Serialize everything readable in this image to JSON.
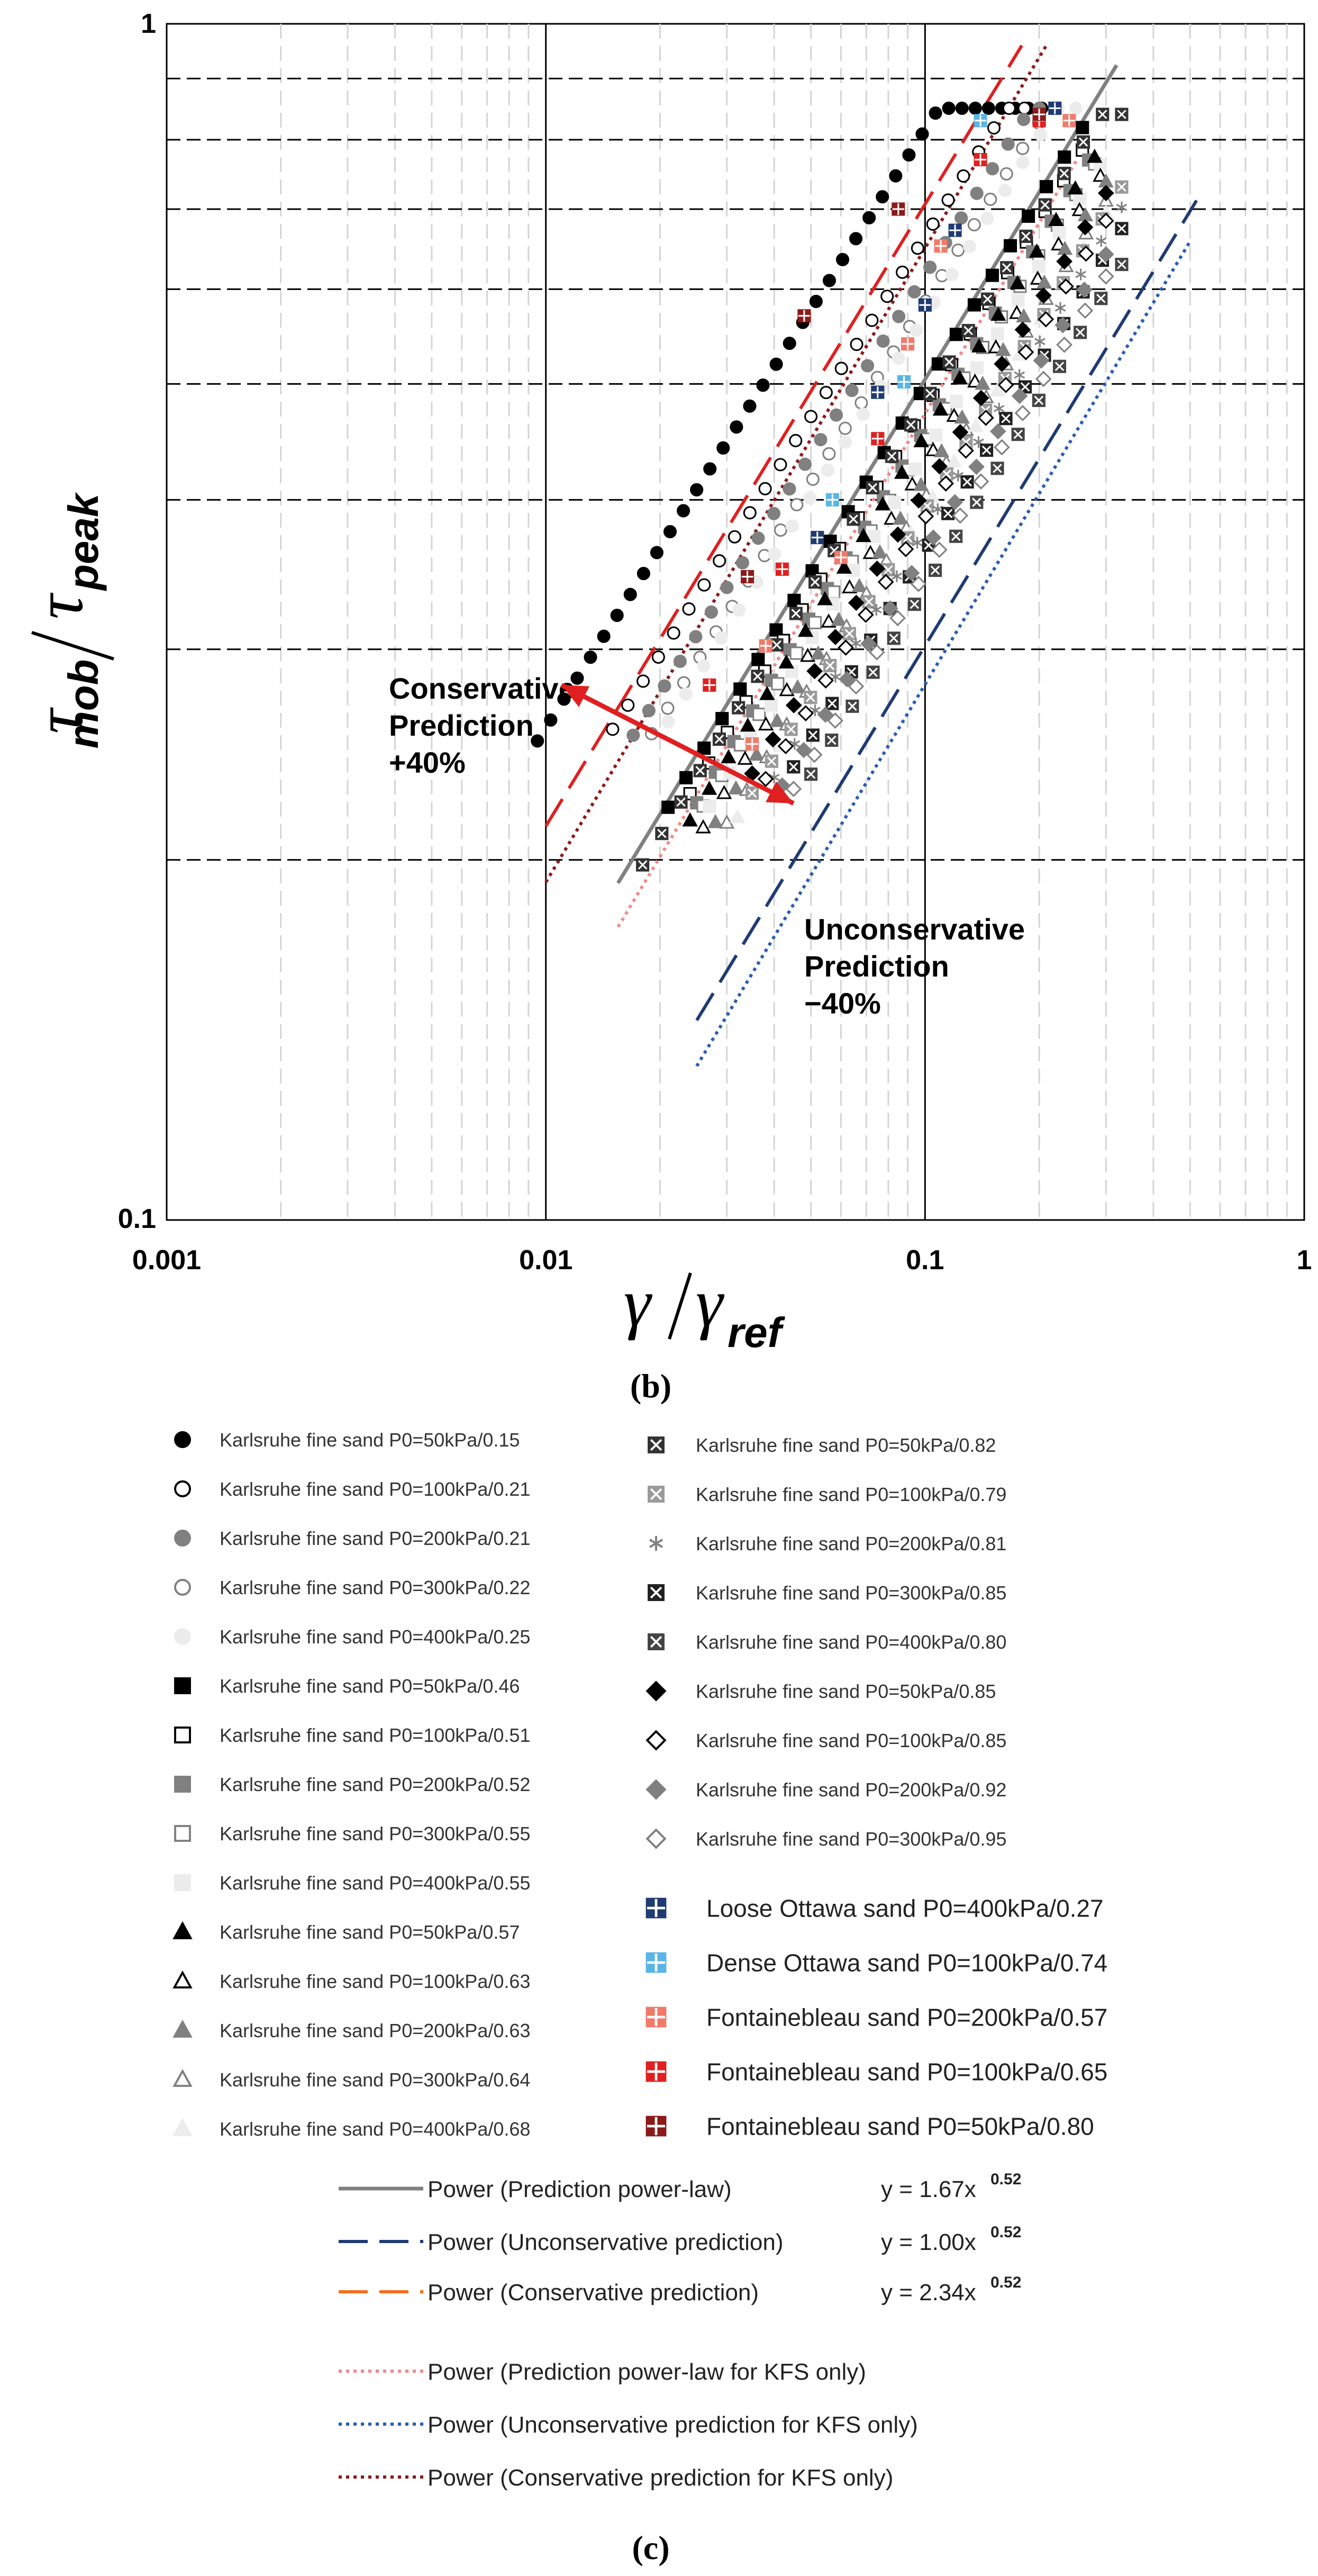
{
  "chart_data": {
    "type": "scatter",
    "x_scale": "log",
    "y_scale": "log",
    "xlim": [
      0.001,
      1
    ],
    "ylim": [
      0.1,
      1
    ],
    "x_ticks": [
      {
        "value": 0.001,
        "label": "0.001"
      },
      {
        "value": 0.01,
        "label": "0.01"
      },
      {
        "value": 0.1,
        "label": "0.1"
      },
      {
        "value": 1,
        "label": "1"
      }
    ],
    "y_ticks": [
      {
        "value": 0.1,
        "label": "0.1"
      },
      {
        "value": 1,
        "label": "1"
      }
    ],
    "y_dashed_gridlines": [
      0.2,
      0.3,
      0.4,
      0.5,
      0.6,
      0.7,
      0.8,
      0.9
    ],
    "xlabel": {
      "main": "γ",
      "sub": "ref"
    },
    "ylabel": {
      "main": "τ",
      "sub_num": "mob",
      "sub_den": "peak"
    },
    "panel_labels": {
      "b": "(b)",
      "c": "(c)"
    },
    "annotations": {
      "conservative": [
        "Conservative",
        "Prediction",
        "+40%"
      ],
      "unconservative": [
        "Unconservative",
        "Prediction",
        "−40%"
      ]
    },
    "arrow": {
      "from": [
        0.011,
        0.28
      ],
      "to": [
        0.045,
        0.223
      ]
    },
    "colors": {
      "black": "#000000",
      "gray": "#808080",
      "light_gray": "#d8d8d8",
      "lighter_gray": "#ececec",
      "navy": "#1f3b73",
      "cyan": "#5ab4e5",
      "salmon": "#f07a6a",
      "red": "#e02020",
      "dark_red": "#8c1a1a",
      "arrow_red": "#e02020"
    },
    "fit_lines": [
      {
        "name": "Power (Prediction power-law)",
        "equation": "y = 1.67x",
        "exponent_label": "0.52",
        "a": 1.67,
        "b": 0.52,
        "x_range": [
          0.0155,
          0.32
        ],
        "color": "#808080",
        "style": "solid"
      },
      {
        "name": "Power (Unconservative prediction)",
        "equation": "y = 1.00x",
        "exponent_label": "0.52",
        "a": 1.0,
        "b": 0.52,
        "x_range": [
          0.025,
          0.52
        ],
        "color": "#1f3b73",
        "style": "dashed"
      },
      {
        "name": "Power (Conservative prediction)",
        "equation": "y = 2.34x",
        "exponent_label": "0.52",
        "a": 2.34,
        "b": 0.52,
        "x_range": [
          0.01,
          0.18
        ],
        "color": "#e02020",
        "style": "dashed"
      },
      {
        "name": "Power (Prediction power-law for KFS only)",
        "equation": "",
        "exponent_label": "",
        "a": 1.6,
        "b": 0.53,
        "x_range": [
          0.0155,
          0.25
        ],
        "color": "#f08a8a",
        "style": "dotted"
      },
      {
        "name": "Power (Unconservative prediction for KFS only)",
        "equation": "",
        "exponent_label": "",
        "a": 0.95,
        "b": 0.53,
        "x_range": [
          0.025,
          0.5
        ],
        "color": "#2a5db0",
        "style": "dotted"
      },
      {
        "name": "Power (Conservative prediction for KFS only)",
        "equation": "",
        "exponent_label": "",
        "a": 2.2,
        "b": 0.53,
        "x_range": [
          0.01,
          0.21
        ],
        "color": "#8c1a1a",
        "style": "dotted"
      }
    ],
    "legend_lines_extra_color": "#f0701e",
    "series": [
      {
        "name": "Karlsruhe fine sand P0=50kPa/0.15",
        "marker": "circle",
        "fill": "#000000",
        "stroke": "#000000",
        "col": 0,
        "x_start": 0.0095,
        "x_end": 0.22,
        "k": 2.58,
        "b": 0.5,
        "n": 40,
        "y_cap": 0.85
      },
      {
        "name": "Karlsruhe fine sand P0=100kPa/0.21",
        "marker": "circle",
        "fill": "#ffffff",
        "stroke": "#000000",
        "col": 0,
        "x_start": 0.015,
        "x_end": 0.22,
        "k": 2.1,
        "b": 0.5,
        "n": 30,
        "y_cap": 0.85
      },
      {
        "name": "Karlsruhe fine sand P0=200kPa/0.21",
        "marker": "circle",
        "fill": "#808080",
        "stroke": "#808080",
        "col": 0,
        "x_start": 0.017,
        "x_end": 0.22,
        "k": 1.95,
        "b": 0.5,
        "n": 28,
        "y_cap": 0.85
      },
      {
        "name": "Karlsruhe fine sand P0=300kPa/0.22",
        "marker": "circle",
        "fill": "#ffffff",
        "stroke": "#808080",
        "col": 0,
        "x_start": 0.019,
        "x_end": 0.22,
        "k": 1.85,
        "b": 0.5,
        "n": 26,
        "y_cap": 0.85
      },
      {
        "name": "Karlsruhe fine sand P0=400kPa/0.25",
        "marker": "circle",
        "fill": "#ececec",
        "stroke": "#ececec",
        "col": 0,
        "x_start": 0.021,
        "x_end": 0.25,
        "k": 1.8,
        "b": 0.5,
        "n": 24,
        "y_cap": 0.85
      },
      {
        "name": "Karlsruhe fine sand P0=50kPa/0.46",
        "marker": "square",
        "fill": "#000000",
        "stroke": "#000000",
        "col": 0,
        "x_start": 0.021,
        "x_end": 0.26,
        "k": 1.65,
        "b": 0.52,
        "n": 24,
        "y_cap": 0.84
      },
      {
        "name": "Karlsruhe fine sand P0=100kPa/0.51",
        "marker": "square",
        "fill": "#ffffff",
        "stroke": "#000000",
        "col": 0,
        "x_start": 0.024,
        "x_end": 0.26,
        "k": 1.58,
        "b": 0.52,
        "n": 22,
        "y_cap": 0.84
      },
      {
        "name": "Karlsruhe fine sand P0=200kPa/0.52",
        "marker": "square",
        "fill": "#808080",
        "stroke": "#808080",
        "col": 0,
        "x_start": 0.025,
        "x_end": 0.27,
        "k": 1.52,
        "b": 0.52,
        "n": 22,
        "y_cap": 0.84
      },
      {
        "name": "Karlsruhe fine sand P0=300kPa/0.55",
        "marker": "square",
        "fill": "#ffffff",
        "stroke": "#808080",
        "col": 0,
        "x_start": 0.026,
        "x_end": 0.28,
        "k": 1.48,
        "b": 0.52,
        "n": 22,
        "y_cap": 0.84
      },
      {
        "name": "Karlsruhe fine sand P0=400kPa/0.55",
        "marker": "square",
        "fill": "#ececec",
        "stroke": "#ececec",
        "col": 0,
        "x_start": 0.027,
        "x_end": 0.29,
        "k": 1.45,
        "b": 0.52,
        "n": 20,
        "y_cap": 0.84
      },
      {
        "name": "Karlsruhe fine sand P0=50kPa/0.57",
        "marker": "triangle",
        "fill": "#000000",
        "stroke": "#000000",
        "col": 0,
        "x_start": 0.024,
        "x_end": 0.28,
        "k": 1.5,
        "b": 0.52,
        "n": 22,
        "y_cap": 0.84
      },
      {
        "name": "Karlsruhe fine sand P0=100kPa/0.63",
        "marker": "triangle",
        "fill": "#ffffff",
        "stroke": "#000000",
        "col": 0,
        "x_start": 0.026,
        "x_end": 0.29,
        "k": 1.42,
        "b": 0.52,
        "n": 20,
        "y_cap": 0.84
      },
      {
        "name": "Karlsruhe fine sand P0=200kPa/0.63",
        "marker": "triangle",
        "fill": "#808080",
        "stroke": "#808080",
        "col": 0,
        "x_start": 0.028,
        "x_end": 0.3,
        "k": 1.38,
        "b": 0.52,
        "n": 20,
        "y_cap": 0.84
      },
      {
        "name": "Karlsruhe fine sand P0=300kPa/0.64",
        "marker": "triangle",
        "fill": "#ffffff",
        "stroke": "#808080",
        "col": 0,
        "x_start": 0.03,
        "x_end": 0.3,
        "k": 1.33,
        "b": 0.52,
        "n": 20,
        "y_cap": 0.84
      },
      {
        "name": "Karlsruhe fine sand P0=400kPa/0.68",
        "marker": "triangle",
        "fill": "#ececec",
        "stroke": "#ececec",
        "col": 0,
        "x_start": 0.032,
        "x_end": 0.3,
        "k": 1.3,
        "b": 0.52,
        "n": 18,
        "y_cap": 0.84
      },
      {
        "name": "Karlsruhe fine sand P0=50kPa/0.82",
        "marker": "xsquare",
        "fill": "#333333",
        "stroke": "#333333",
        "col": 1,
        "x_start": 0.018,
        "x_end": 0.33,
        "k": 1.6,
        "b": 0.52,
        "n": 26,
        "y_cap": 0.84
      },
      {
        "name": "Karlsruhe fine sand P0=100kPa/0.79",
        "marker": "xsquare",
        "fill": "#9a9a9a",
        "stroke": "#9a9a9a",
        "col": 1,
        "x_start": 0.035,
        "x_end": 0.33,
        "k": 1.3,
        "b": 0.52,
        "n": 20,
        "y_cap": 0.84
      },
      {
        "name": "Karlsruhe fine sand P0=200kPa/0.81",
        "marker": "asterisk",
        "fill": "none",
        "stroke": "#808080",
        "col": 1,
        "x_start": 0.04,
        "x_end": 0.33,
        "k": 1.25,
        "b": 0.52,
        "n": 18,
        "y_cap": 0.84
      },
      {
        "name": "Karlsruhe fine sand P0=300kPa/0.85",
        "marker": "xsquare",
        "fill": "#222222",
        "stroke": "#222222",
        "col": 1,
        "x_start": 0.045,
        "x_end": 0.33,
        "k": 1.2,
        "b": 0.52,
        "n": 18,
        "y_cap": 0.84
      },
      {
        "name": "Karlsruhe fine sand P0=400kPa/0.80",
        "marker": "xsquare",
        "fill": "#444444",
        "stroke": "#444444",
        "col": 1,
        "x_start": 0.05,
        "x_end": 0.33,
        "k": 1.12,
        "b": 0.52,
        "n": 16,
        "y_cap": 0.84
      },
      {
        "name": "Karlsruhe fine sand P0=50kPa/0.85",
        "marker": "diamond",
        "fill": "#000000",
        "stroke": "#000000",
        "col": 1,
        "x_start": 0.035,
        "x_end": 0.3,
        "k": 1.35,
        "b": 0.52,
        "n": 18,
        "y_cap": 0.84
      },
      {
        "name": "Karlsruhe fine sand P0=100kPa/0.85",
        "marker": "diamond",
        "fill": "#ffffff",
        "stroke": "#000000",
        "col": 1,
        "x_start": 0.038,
        "x_end": 0.3,
        "k": 1.28,
        "b": 0.52,
        "n": 18,
        "y_cap": 0.84
      },
      {
        "name": "Karlsruhe fine sand P0=200kPa/0.92",
        "marker": "diamond",
        "fill": "#808080",
        "stroke": "#808080",
        "col": 1,
        "x_start": 0.042,
        "x_end": 0.3,
        "k": 1.2,
        "b": 0.52,
        "n": 16,
        "y_cap": 0.84
      },
      {
        "name": "Karlsruhe fine sand P0=300kPa/0.95",
        "marker": "diamond",
        "fill": "#ffffff",
        "stroke": "#808080",
        "col": 1,
        "x_start": 0.045,
        "x_end": 0.3,
        "k": 1.15,
        "b": 0.52,
        "n": 16,
        "y_cap": 0.84
      },
      {
        "name": "Loose Ottawa sand P0=400kPa/0.27",
        "marker": "cross_square",
        "fill": "#1f3b73",
        "stroke": "#1f3b73",
        "col": 2,
        "points": [
          [
            0.052,
            0.372
          ],
          [
            0.075,
            0.492
          ],
          [
            0.1,
            0.582
          ],
          [
            0.12,
            0.672
          ],
          [
            0.22,
            0.85
          ]
        ]
      },
      {
        "name": "Dense Ottawa sand P0=100kPa/0.74",
        "marker": "cross_square",
        "fill": "#5ab4e5",
        "stroke": "#5ab4e5",
        "col": 2,
        "points": [
          [
            0.057,
            0.4
          ],
          [
            0.088,
            0.502
          ],
          [
            0.14,
            0.83
          ],
          [
            0.2,
            0.84
          ]
        ]
      },
      {
        "name": "Fontainebleau sand P0=200kPa/0.57",
        "marker": "cross_square",
        "fill": "#f07a6a",
        "stroke": "#f07a6a",
        "col": 2,
        "points": [
          [
            0.035,
            0.25
          ],
          [
            0.038,
            0.302
          ],
          [
            0.06,
            0.358
          ],
          [
            0.09,
            0.54
          ],
          [
            0.11,
            0.652
          ],
          [
            0.24,
            0.83
          ]
        ]
      },
      {
        "name": "Fontainebleau sand P0=100kPa/0.65",
        "marker": "cross_square",
        "fill": "#e02020",
        "stroke": "#e02020",
        "col": 2,
        "points": [
          [
            0.027,
            0.28
          ],
          [
            0.042,
            0.35
          ],
          [
            0.075,
            0.45
          ],
          [
            0.14,
            0.77
          ],
          [
            0.2,
            0.83
          ]
        ]
      },
      {
        "name": "Fontainebleau sand P0=50kPa/0.80",
        "marker": "cross_square",
        "fill": "#8c1a1a",
        "stroke": "#8c1a1a",
        "col": 2,
        "points": [
          [
            0.034,
            0.345
          ],
          [
            0.048,
            0.57
          ],
          [
            0.085,
            0.7
          ],
          [
            0.2,
            0.84
          ]
        ]
      }
    ]
  }
}
